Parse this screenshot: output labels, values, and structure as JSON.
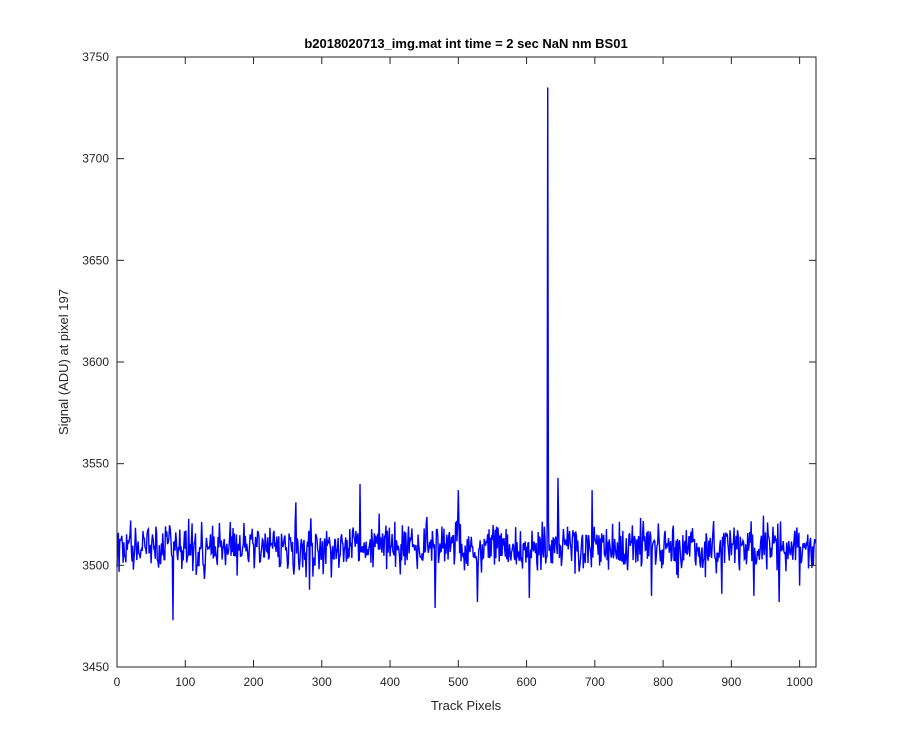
{
  "chart_data": {
    "type": "line",
    "title": "b2018020713_img.mat int time = 2 sec  NaN nm BS01",
    "xlabel": "Track Pixels",
    "ylabel": "Signal (ADU) at pixel 197",
    "xlim": [
      0,
      1024
    ],
    "ylim": [
      3450,
      3750
    ],
    "xticks": [
      0,
      100,
      200,
      300,
      400,
      500,
      600,
      700,
      800,
      900,
      1000
    ],
    "yticks": [
      3450,
      3500,
      3550,
      3600,
      3650,
      3700,
      3750
    ],
    "grid": false,
    "legend": "none",
    "series": [
      {
        "color": "#0000ff",
        "n_points": 1024,
        "baseline": 3509,
        "noise_halfwidth": 13,
        "notable_points": [
          {
            "x": 2,
            "y": 3516
          },
          {
            "x": 82,
            "y": 3473
          },
          {
            "x": 118,
            "y": 3500
          },
          {
            "x": 198,
            "y": 3518
          },
          {
            "x": 262,
            "y": 3531
          },
          {
            "x": 272,
            "y": 3499
          },
          {
            "x": 282,
            "y": 3488
          },
          {
            "x": 314,
            "y": 3494
          },
          {
            "x": 356,
            "y": 3540
          },
          {
            "x": 396,
            "y": 3517
          },
          {
            "x": 466,
            "y": 3479
          },
          {
            "x": 500,
            "y": 3537
          },
          {
            "x": 528,
            "y": 3482
          },
          {
            "x": 556,
            "y": 3519
          },
          {
            "x": 604,
            "y": 3484
          },
          {
            "x": 631,
            "y": 3735
          },
          {
            "x": 646,
            "y": 3543
          },
          {
            "x": 696,
            "y": 3537
          },
          {
            "x": 783,
            "y": 3485
          },
          {
            "x": 886,
            "y": 3486
          },
          {
            "x": 933,
            "y": 3485
          },
          {
            "x": 970,
            "y": 3482
          },
          {
            "x": 1000,
            "y": 3490
          }
        ]
      }
    ]
  }
}
